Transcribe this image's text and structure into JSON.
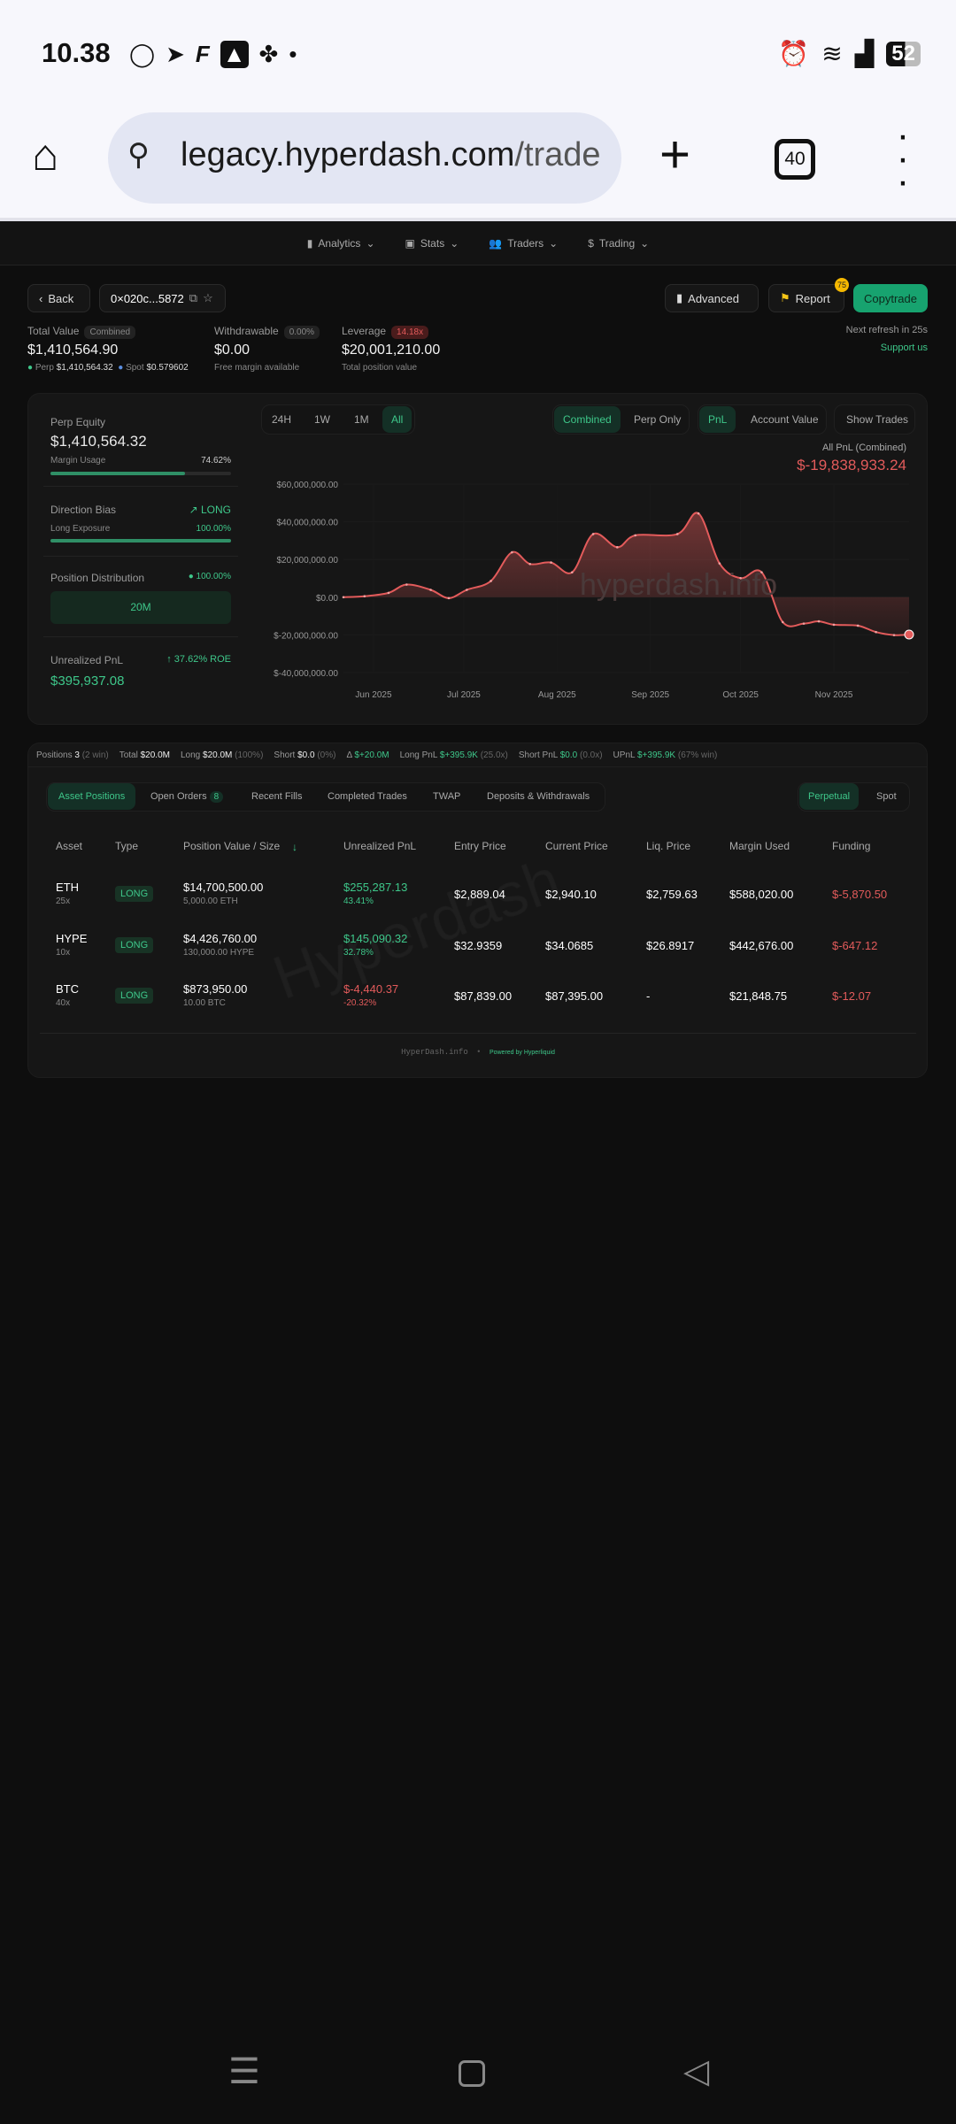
{
  "status_bar": {
    "time": "10.38",
    "battery": "52",
    "notification_icons": [
      "whatsapp-icon",
      "telegram-icon",
      "f-app-icon",
      "m-app-icon",
      "pinwheel-icon"
    ],
    "right_icons": [
      "alarm-icon",
      "wifi-icon",
      "signal-icon",
      "battery-icon"
    ]
  },
  "browser": {
    "url_domain": "legacy.hyperdash.com",
    "url_path": "/trade",
    "tab_count": "40"
  },
  "nav": {
    "items": [
      {
        "label": "Analytics",
        "icon": "bar-chart-icon"
      },
      {
        "label": "Stats",
        "icon": "stats-icon"
      },
      {
        "label": "Traders",
        "icon": "users-icon"
      },
      {
        "label": "Trading",
        "icon": "dollar-icon"
      }
    ]
  },
  "header": {
    "back": "Back",
    "address": "0×020c...5872",
    "advanced": "Advanced",
    "report": "Report",
    "report_badge": "75",
    "copytrade": "Copytrade"
  },
  "summary": {
    "total_value_label": "Total Value",
    "total_value_chip": "Combined",
    "total_value": "$1,410,564.90",
    "perp_label": "Perp",
    "perp_value": "$1,410,564.32",
    "spot_label": "Spot",
    "spot_value": "$0.579602",
    "withdrawable_label": "Withdrawable",
    "withdrawable_chip": "0.00%",
    "withdrawable": "$0.00",
    "withdrawable_sub": "Free margin available",
    "leverage_label": "Leverage",
    "leverage_chip": "14.18x",
    "leverage": "$20,001,210.00",
    "leverage_sub": "Total position value",
    "refresh": "Next refresh in 25s",
    "support": "Support us"
  },
  "left_panel": {
    "perp_equity_label": "Perp Equity",
    "perp_equity": "$1,410,564.32",
    "margin_usage_label": "Margin Usage",
    "margin_usage": "74.62%",
    "margin_usage_pct": 74.62,
    "direction_label": "Direction Bias",
    "direction": "LONG",
    "long_exposure_label": "Long Exposure",
    "long_exposure": "100.00%",
    "long_exposure_pct": 100,
    "distribution_label": "Position Distribution",
    "distribution_pct": "100.00%",
    "distribution_block": "20M",
    "upnl_label": "Unrealized PnL",
    "roe": "37.62% ROE",
    "upnl": "$395,937.08"
  },
  "chart_controls": {
    "time": [
      "24H",
      "1W",
      "1M",
      "All"
    ],
    "time_selected": "All",
    "scope": [
      "Combined",
      "Perp Only"
    ],
    "scope_selected": "Combined",
    "metric": [
      "PnL",
      "Account Value"
    ],
    "metric_selected": "PnL",
    "show_trades": "Show Trades"
  },
  "chart_data": {
    "type": "area",
    "title": "All PnL (Combined)",
    "current_value": "$-19,838,933.24",
    "watermark": "hyperdash.info",
    "line_color": "#e35b5b",
    "yticks": [
      "$60,000,000.00",
      "$40,000,000.00",
      "$20,000,000.00",
      "$0.00",
      "$-20,000,000.00",
      "$-40,000,000.00"
    ],
    "ylim": [
      -40000000,
      60000000
    ],
    "xticks": [
      "Jun 2025",
      "Jul 2025",
      "Aug 2025",
      "Sep 2025",
      "Oct 2025",
      "Nov 2025"
    ],
    "xlim": [
      "2025-05-22",
      "2025-11-26"
    ],
    "x": [
      "2025-05-22",
      "2025-05-29",
      "2025-06-06",
      "2025-06-12",
      "2025-06-20",
      "2025-06-26",
      "2025-07-02",
      "2025-07-10",
      "2025-07-17",
      "2025-07-23",
      "2025-07-30",
      "2025-08-06",
      "2025-08-13",
      "2025-08-21",
      "2025-08-27",
      "2025-09-10",
      "2025-09-17",
      "2025-09-24",
      "2025-10-01",
      "2025-10-08",
      "2025-10-15",
      "2025-10-22",
      "2025-10-27",
      "2025-11-01",
      "2025-11-09",
      "2025-11-15",
      "2025-11-21",
      "2025-11-26"
    ],
    "y": [
      0,
      0.5,
      2.3,
      6.7,
      3.9,
      -0.5,
      3.9,
      8.6,
      23.8,
      17.6,
      18.4,
      13.2,
      33.5,
      26.5,
      32.8,
      33.5,
      44.4,
      17.9,
      10.1,
      13.2,
      -13.2,
      -14.0,
      -12.8,
      -14.6,
      -15.1,
      -18.5,
      -20.1,
      -19.8
    ],
    "y_unit": "millions USD"
  },
  "positions_summary": [
    {
      "k": "Positions",
      "v": "3",
      "n": "(2 win)"
    },
    {
      "k": "Total",
      "v": "$20.0M",
      "n": ""
    },
    {
      "k": "Long",
      "v": "$20.0M",
      "n": "(100%)"
    },
    {
      "k": "Short",
      "v": "$0.0",
      "n": "(0%)"
    },
    {
      "k": "Δ",
      "v": "$+20.0M",
      "n": "",
      "g": 1
    },
    {
      "k": "Long PnL",
      "v": "$+395.9K",
      "n": "(25.0x)",
      "g": 1
    },
    {
      "k": "Short PnL",
      "v": "$0.0",
      "n": "(0.0x)",
      "g": 1
    },
    {
      "k": "UPnL",
      "v": "$+395.9K",
      "n": "(67% win)",
      "g": 1
    }
  ],
  "tabs": {
    "items": [
      "Asset Positions",
      "Open Orders",
      "Recent Fills",
      "Completed Trades",
      "TWAP",
      "Deposits & Withdrawals"
    ],
    "open_orders_count": "8",
    "selected": "Asset Positions",
    "market": [
      "Perpetual",
      "Spot"
    ],
    "market_selected": "Perpetual"
  },
  "table": {
    "headers": [
      "Asset",
      "Type",
      "Position Value / Size",
      "Unrealized PnL",
      "Entry Price",
      "Current Price",
      "Liq. Price",
      "Margin Used",
      "Funding"
    ],
    "rows": [
      {
        "asset": "ETH",
        "lev": "25x",
        "type": "LONG",
        "value": "$14,700,500.00",
        "size": "5,000.00 ETH",
        "upnl": "$255,287.13",
        "upnl_pct": "43.41%",
        "upnl_pos": true,
        "entry": "$2,889.04",
        "current": "$2,940.10",
        "liq": "$2,759.63",
        "margin": "$588,020.00",
        "funding": "$-5,870.50"
      },
      {
        "asset": "HYPE",
        "lev": "10x",
        "type": "LONG",
        "value": "$4,426,760.00",
        "size": "130,000.00 HYPE",
        "upnl": "$145,090.32",
        "upnl_pct": "32.78%",
        "upnl_pos": true,
        "entry": "$32.9359",
        "current": "$34.0685",
        "liq": "$26.8917",
        "margin": "$442,676.00",
        "funding": "$-647.12"
      },
      {
        "asset": "BTC",
        "lev": "40x",
        "type": "LONG",
        "value": "$873,950.00",
        "size": "10.00 BTC",
        "upnl": "$-4,440.37",
        "upnl_pct": "-20.32%",
        "upnl_pos": false,
        "entry": "$87,839.00",
        "current": "$87,395.00",
        "liq": "-",
        "margin": "$21,848.75",
        "funding": "$-12.07"
      }
    ]
  },
  "watermark_table": "Hyperdash",
  "footer": {
    "brand": "HyperDash.info",
    "powered": "Powered by Hyperliquid"
  }
}
